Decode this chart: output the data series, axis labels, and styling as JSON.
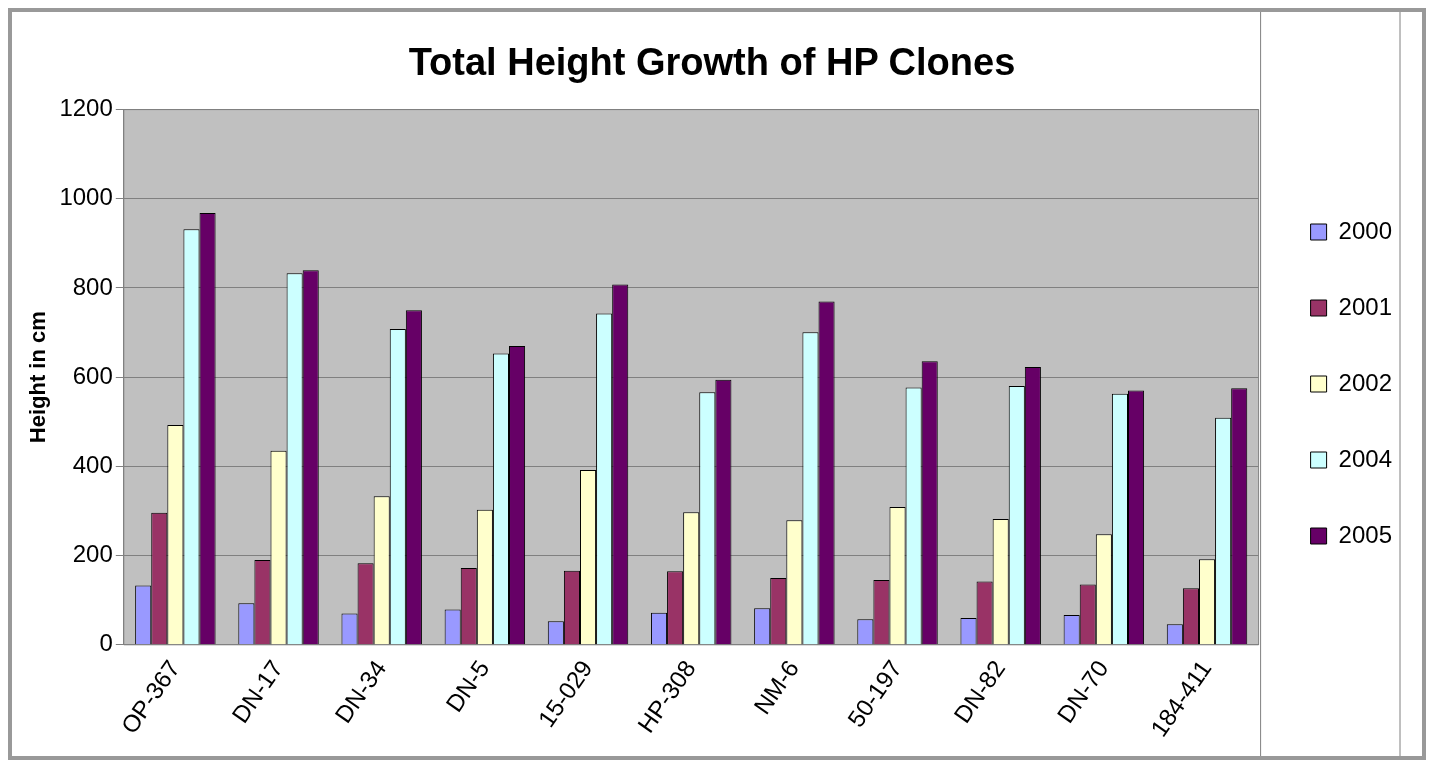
{
  "chart_data": {
    "type": "bar",
    "title": "Total Height Growth of HP Clones",
    "ylabel": "Height in cm",
    "categories": [
      "OP-367",
      "DN-17",
      "DN-34",
      "DN-5",
      "15-029",
      "HP-308",
      "NM-6",
      "50-197",
      "DN-82",
      "DN-70",
      "184-411"
    ],
    "series": [
      {
        "name": "2000",
        "color": "#9999ff",
        "values": [
          133,
          93,
          70,
          79,
          53,
          72,
          82,
          57,
          60,
          67,
          46
        ]
      },
      {
        "name": "2001",
        "color": "#993366",
        "values": [
          296,
          190,
          183,
          172,
          166,
          165,
          150,
          145,
          142,
          135,
          127
        ]
      },
      {
        "name": "2002",
        "color": "#ffffcc",
        "values": [
          493,
          435,
          333,
          303,
          392,
          297,
          279,
          309,
          282,
          248,
          192
        ]
      },
      {
        "name": "2004",
        "color": "#ccffff",
        "values": [
          932,
          833,
          708,
          653,
          743,
          566,
          701,
          577,
          580,
          563,
          509
        ]
      },
      {
        "name": "2005",
        "color": "#660066",
        "values": [
          968,
          840,
          750,
          670,
          808,
          594,
          770,
          636,
          623,
          570,
          575
        ]
      }
    ],
    "ylim": [
      0,
      1200
    ],
    "yticks": [
      0,
      200,
      400,
      600,
      800,
      1000,
      1200
    ],
    "grid": "y",
    "legend": "right"
  }
}
